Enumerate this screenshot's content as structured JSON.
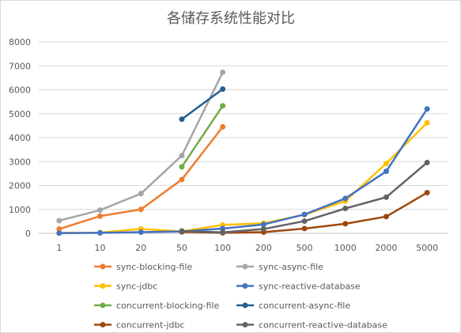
{
  "chart_data": {
    "type": "line",
    "title": "各储存系统性能对比",
    "xlabel": "",
    "ylabel": "",
    "categories": [
      "1",
      "10",
      "20",
      "50",
      "100",
      "200",
      "500",
      "1000",
      "2000",
      "5000"
    ],
    "ylim": [
      0,
      8000
    ],
    "yticks": [
      0,
      1000,
      2000,
      3000,
      4000,
      5000,
      6000,
      7000,
      8000
    ],
    "grid": true,
    "legend_position": "bottom",
    "series": [
      {
        "name": "sync-blocking-file",
        "color": "#ED7D31",
        "values": [
          180,
          720,
          1000,
          2250,
          4450,
          null,
          null,
          null,
          null,
          null
        ]
      },
      {
        "name": "sync-async-file",
        "color": "#A5A5A5",
        "values": [
          530,
          970,
          1660,
          3250,
          6730,
          null,
          null,
          null,
          null,
          null
        ]
      },
      {
        "name": "sync-jdbc",
        "color": "#FFC000",
        "values": [
          20,
          30,
          180,
          80,
          350,
          420,
          780,
          1350,
          2920,
          4620
        ]
      },
      {
        "name": "sync-reactive-database",
        "color": "#4472C4",
        "values": [
          10,
          20,
          50,
          80,
          200,
          370,
          790,
          1460,
          2590,
          5200
        ]
      },
      {
        "name": "concurrent-blocking-file",
        "color": "#70AD47",
        "values": [
          null,
          null,
          null,
          2780,
          5330,
          null,
          null,
          null,
          null,
          null
        ]
      },
      {
        "name": "concurrent-async-file",
        "color": "#255E91",
        "values": [
          null,
          null,
          null,
          4770,
          6030,
          null,
          null,
          null,
          null,
          null
        ]
      },
      {
        "name": "concurrent-jdbc",
        "color": "#9E480E",
        "values": [
          null,
          null,
          null,
          60,
          20,
          50,
          200,
          400,
          700,
          1700
        ]
      },
      {
        "name": "concurrent-reactive-database",
        "color": "#636363",
        "values": [
          null,
          null,
          null,
          100,
          40,
          180,
          510,
          1040,
          1510,
          2960
        ]
      }
    ]
  }
}
